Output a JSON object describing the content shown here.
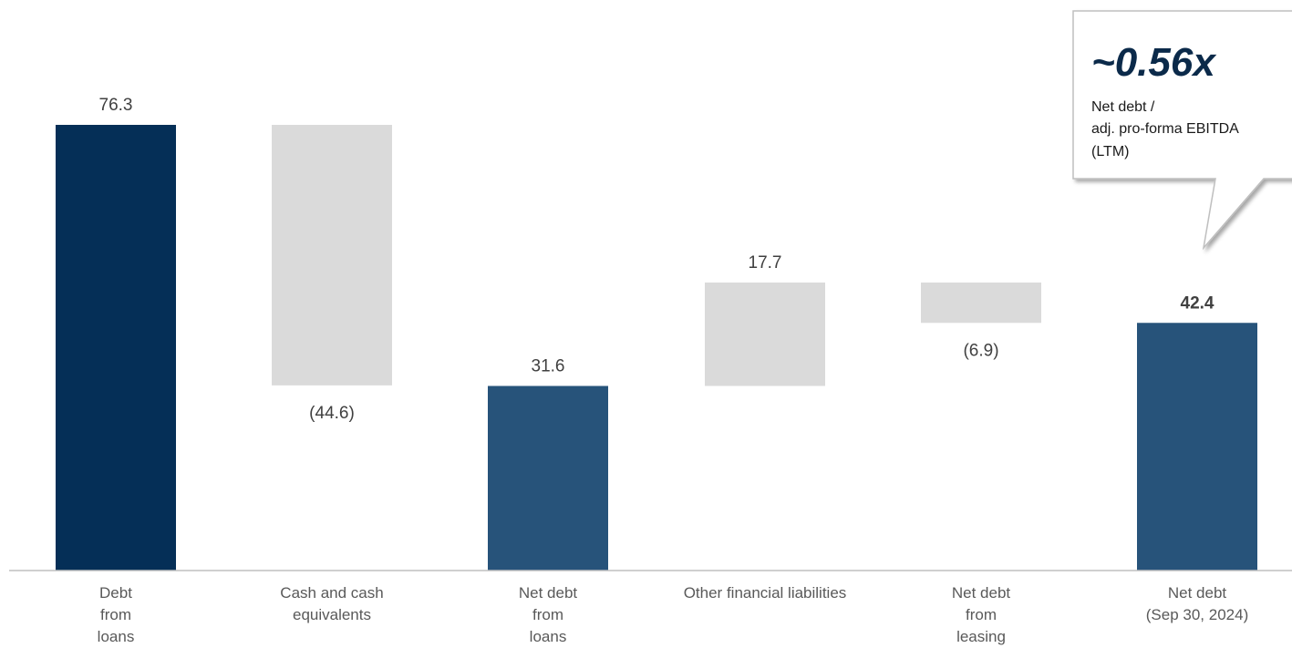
{
  "chart_data": {
    "type": "bar",
    "subtype": "waterfall",
    "categories": [
      [
        "Debt",
        "from",
        "loans"
      ],
      [
        "Cash and cash",
        "equivalents"
      ],
      [
        "Net debt",
        "from",
        "loans"
      ],
      [
        "Other financial liabilities"
      ],
      [
        "Net debt",
        "from",
        "leasing"
      ],
      [
        "Net debt",
        "(Sep 30, 2024)"
      ]
    ],
    "values": [
      76.3,
      -44.6,
      31.6,
      17.7,
      -6.9,
      42.4
    ],
    "value_labels": [
      "76.3",
      "(44.6)",
      "31.6",
      "17.7",
      "(6.9)",
      "42.4"
    ],
    "measure": [
      "total",
      "relative",
      "total",
      "relative",
      "relative",
      "total"
    ],
    "ylim": [
      0,
      76.3
    ],
    "grid": false,
    "colors": {
      "start_total": "#052f57",
      "total": "#27537a",
      "delta": "#dadada",
      "axis": "#bfbfbf"
    },
    "callout": {
      "value": "~0.56x",
      "lines": [
        "Net debt /",
        "adj. pro-forma EBITDA",
        "(LTM)"
      ]
    }
  }
}
